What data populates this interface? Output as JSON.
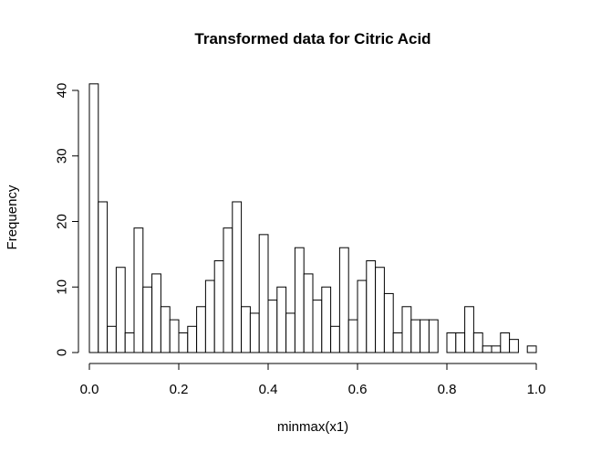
{
  "chart_data": {
    "type": "bar",
    "title": "Transformed data for Citric Acid",
    "xlabel": "minmax(x1)",
    "ylabel": "Frequency",
    "xlim": [
      0,
      1
    ],
    "ylim": [
      0,
      40
    ],
    "xticks": [
      "0.0",
      "0.2",
      "0.4",
      "0.6",
      "0.8",
      "1.0"
    ],
    "yticks": [
      "0",
      "10",
      "20",
      "30",
      "40"
    ],
    "bin_width": 0.02,
    "values": [
      41,
      23,
      4,
      13,
      3,
      19,
      10,
      12,
      7,
      5,
      3,
      4,
      7,
      11,
      14,
      19,
      23,
      7,
      6,
      18,
      8,
      10,
      6,
      16,
      12,
      8,
      10,
      4,
      16,
      5,
      11,
      14,
      13,
      9,
      3,
      7,
      5,
      5,
      5,
      0,
      3,
      3,
      7,
      3,
      1,
      1,
      3,
      2,
      0,
      1
    ],
    "grid": false,
    "legend": "none"
  }
}
